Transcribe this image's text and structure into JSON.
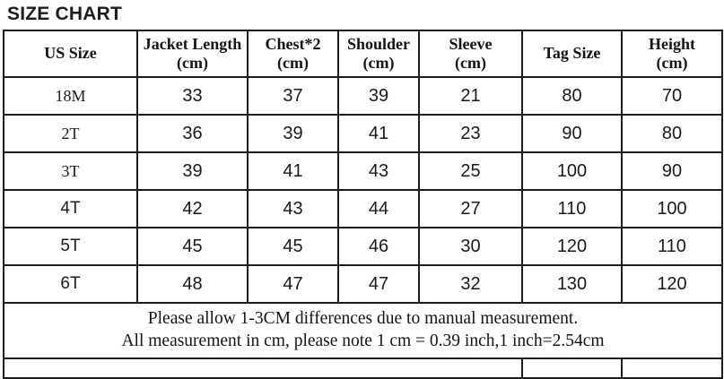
{
  "page": {
    "title": "SIZE CHART"
  },
  "table": {
    "headers": [
      {
        "label": "US Size",
        "unit": ""
      },
      {
        "label": "Jacket Length",
        "unit": "(cm)"
      },
      {
        "label": "Chest*2",
        "unit": "(cm)"
      },
      {
        "label": "Shoulder",
        "unit": "(cm)"
      },
      {
        "label": "Sleeve",
        "unit": "(cm)"
      },
      {
        "label": "Tag Size",
        "unit": ""
      },
      {
        "label": "Height",
        "unit": "(cm)"
      }
    ],
    "rows": [
      {
        "us_size": "18M",
        "values": [
          "33",
          "37",
          "39",
          "21",
          "80",
          "70"
        ]
      },
      {
        "us_size": "2T",
        "values": [
          "36",
          "39",
          "41",
          "23",
          "90",
          "80"
        ]
      },
      {
        "us_size": "3T",
        "values": [
          "39",
          "41",
          "43",
          "25",
          "100",
          "90"
        ]
      },
      {
        "us_size": "4T",
        "values": [
          "42",
          "43",
          "44",
          "27",
          "110",
          "100"
        ]
      },
      {
        "us_size": "5T",
        "values": [
          "45",
          "45",
          "46",
          "30",
          "120",
          "110"
        ]
      },
      {
        "us_size": "6T",
        "values": [
          "48",
          "47",
          "47",
          "32",
          "130",
          "120"
        ]
      }
    ],
    "notes": [
      "Please allow 1-3CM differences due to manual measurement.",
      "All measurement in cm, please note 1 cm = 0.39 inch,1 inch=2.54cm"
    ]
  }
}
